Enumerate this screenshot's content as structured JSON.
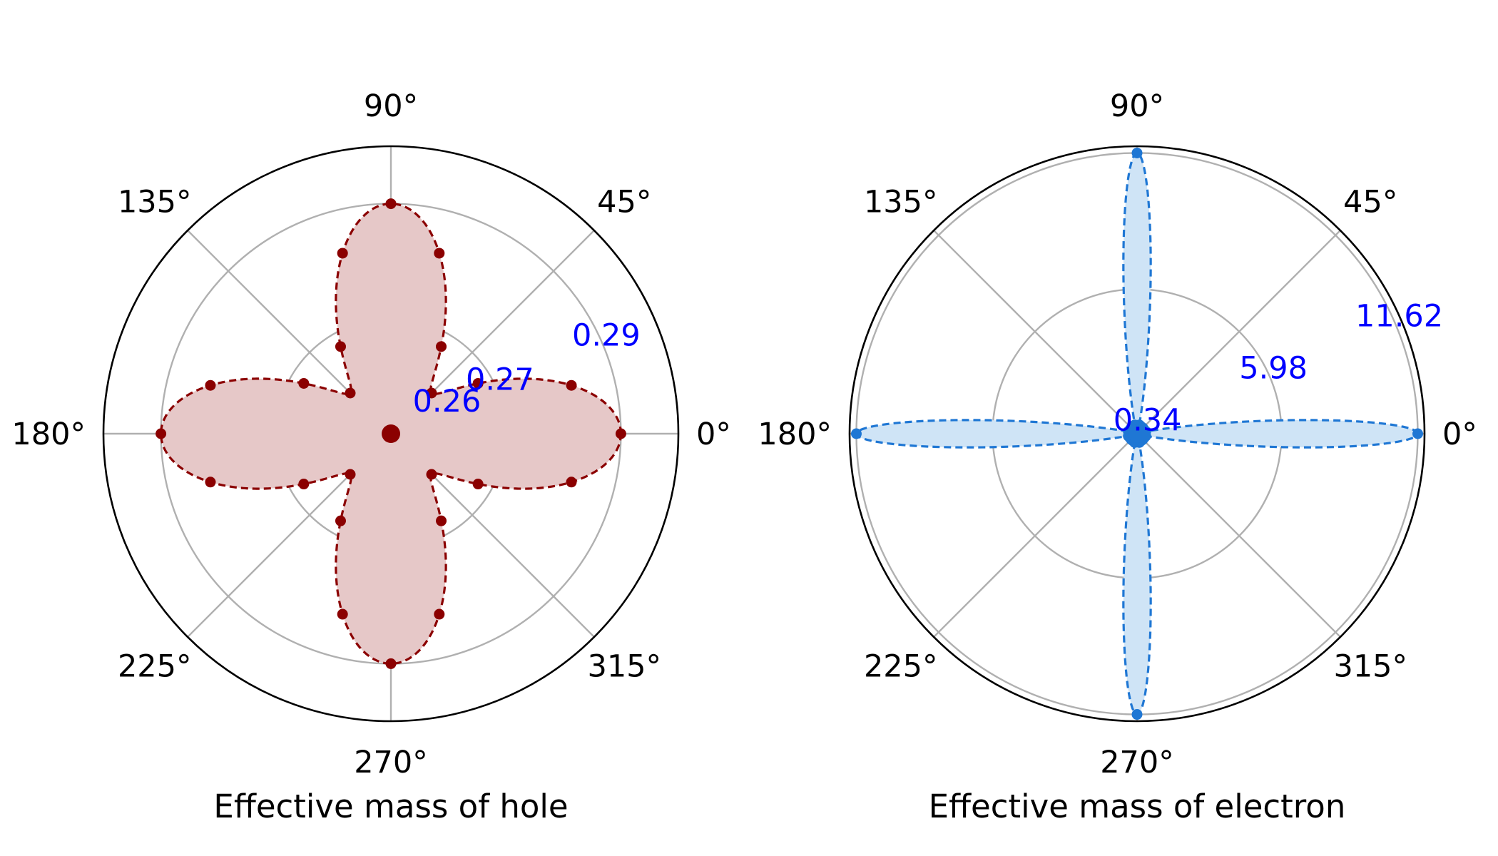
{
  "chart_data": [
    {
      "type": "polar",
      "title": "",
      "xlabel": "Effective mass of hole",
      "angle_labels": [
        "0°",
        "45°",
        "90°",
        "135°",
        "180°",
        "225°",
        "270°",
        "315°"
      ],
      "r_tick_labels": [
        "0.26",
        "0.27",
        "0.29"
      ],
      "rlim": [
        0.25,
        0.3
      ],
      "r_grid": [
        0.26,
        0.27,
        0.29
      ],
      "series": [
        {
          "name": "hole effective mass",
          "line_color": "#8b0000",
          "fill_color": "#e6c8c8",
          "line_style": "dashed",
          "min": 0.26,
          "max": 0.29,
          "lobe_exponent": 2,
          "points_angles_deg": [
            0,
            15,
            30,
            45,
            60,
            75,
            90,
            105,
            120,
            135,
            150,
            165,
            180,
            195,
            210,
            225,
            240,
            255,
            270,
            285,
            300,
            315,
            330,
            345
          ]
        }
      ]
    },
    {
      "type": "polar",
      "title": "",
      "xlabel": "Effective mass of electron",
      "angle_labels": [
        "0°",
        "45°",
        "90°",
        "135°",
        "180°",
        "225°",
        "270°",
        "315°"
      ],
      "r_tick_labels": [
        "0.34",
        "5.98",
        "11.62"
      ],
      "rlim": [
        0,
        11.9
      ],
      "r_grid": [
        0.34,
        5.98,
        11.62
      ],
      "series": [
        {
          "name": "electron effective mass",
          "line_color": "#1f77d4",
          "fill_color": "#cfe4f6",
          "line_style": "dashed",
          "min": 0.34,
          "max": 11.62,
          "lobe_exponent": 40,
          "points_angles_deg": [
            0,
            15,
            30,
            45,
            60,
            75,
            90,
            105,
            120,
            135,
            150,
            165,
            180,
            195,
            210,
            225,
            240,
            255,
            270,
            285,
            300,
            315,
            330,
            345
          ]
        }
      ]
    }
  ]
}
